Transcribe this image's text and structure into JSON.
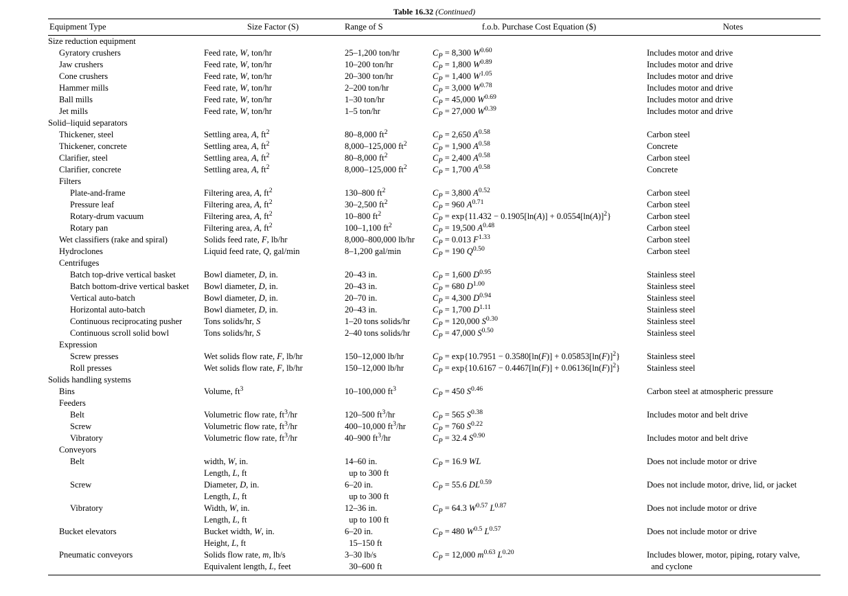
{
  "caption": {
    "label": "Table 16.32",
    "suffix": "(Continued)"
  },
  "headers": {
    "equipment": "Equipment Type",
    "size_factor": "Size Factor (S)",
    "range": "Range of S",
    "cost_eq": "f.o.b. Purchase Cost Equation ($)",
    "notes": "Notes"
  },
  "rows": [
    {
      "indent": 0,
      "eq": "Size reduction equipment"
    },
    {
      "indent": 1,
      "eq": "Gyratory crushers",
      "sf": "Feed rate, <span class='i'>W</span>, ton/hr",
      "rs": "25–1,200 ton/hr",
      "ce": "<span class='i'>C<sub>P</sub></span> = 8,300 <span class='i'>W</span><sup>0.60</sup>",
      "nt": "Includes motor and drive"
    },
    {
      "indent": 1,
      "eq": "Jaw crushers",
      "sf": "Feed rate, <span class='i'>W</span>, ton/hr",
      "rs": "10–200 ton/hr",
      "ce": "<span class='i'>C<sub>P</sub></span> = 1,800 <span class='i'>W</span><sup>0.89</sup>",
      "nt": "Includes motor and drive"
    },
    {
      "indent": 1,
      "eq": "Cone crushers",
      "sf": "Feed rate, <span class='i'>W</span>, ton/hr",
      "rs": "20–300 ton/hr",
      "ce": "<span class='i'>C<sub>P</sub></span> = 1,400 <span class='i'>W</span><sup>1.05</sup>",
      "nt": "Includes motor and drive"
    },
    {
      "indent": 1,
      "eq": "Hammer mills",
      "sf": "Feed rate, <span class='i'>W</span>, ton/hr",
      "rs": "2–200 ton/hr",
      "ce": "<span class='i'>C<sub>P</sub></span> = 3,000 <span class='i'>W</span><sup>0.78</sup>",
      "nt": "Includes motor and drive"
    },
    {
      "indent": 1,
      "eq": "Ball mills",
      "sf": "Feed rate, <span class='i'>W</span>, ton/hr",
      "rs": "1–30 ton/hr",
      "ce": "<span class='i'>C<sub>P</sub></span> = 45,000 <span class='i'>W</span><sup>0.69</sup>",
      "nt": "Includes motor and drive"
    },
    {
      "indent": 1,
      "eq": "Jet mills",
      "sf": "Feed rate, <span class='i'>W</span>, ton/hr",
      "rs": "1–5 ton/hr",
      "ce": "<span class='i'>C<sub>P</sub></span> = 27,000 <span class='i'>W</span><sup>0.39</sup>",
      "nt": "Includes motor and drive"
    },
    {
      "indent": 0,
      "eq": "Solid–liquid separators"
    },
    {
      "indent": 1,
      "eq": "Thickener, steel",
      "sf": "Settling area, <span class='i'>A</span>, ft<sup>2</sup>",
      "rs": "80–8,000 ft<sup>2</sup>",
      "ce": "<span class='i'>C<sub>P</sub></span> = 2,650 <span class='i'>A</span><sup>0.58</sup>",
      "nt": "Carbon steel"
    },
    {
      "indent": 1,
      "eq": "Thickener, concrete",
      "sf": "Settling area, <span class='i'>A</span>, ft<sup>2</sup>",
      "rs": "8,000–125,000 ft<sup>2</sup>",
      "ce": "<span class='i'>C<sub>P</sub></span> = 1,900 <span class='i'>A</span><sup>0.58</sup>",
      "nt": "Concrete"
    },
    {
      "indent": 1,
      "eq": "Clarifier, steel",
      "sf": "Settling area, <span class='i'>A</span>, ft<sup>2</sup>",
      "rs": "80–8,000 ft<sup>2</sup>",
      "ce": "<span class='i'>C<sub>P</sub></span> = 2,400 <span class='i'>A</span><sup>0.58</sup>",
      "nt": "Carbon steel"
    },
    {
      "indent": 1,
      "eq": "Clarifier, concrete",
      "sf": "Settling area, <span class='i'>A</span>, ft<sup>2</sup>",
      "rs": "8,000–125,000 ft<sup>2</sup>",
      "ce": "<span class='i'>C<sub>P</sub></span> = 1,700 <span class='i'>A</span><sup>0.58</sup>",
      "nt": "Concrete"
    },
    {
      "indent": 1,
      "eq": "Filters"
    },
    {
      "indent": 2,
      "eq": "Plate-and-frame",
      "sf": "Filtering area, <span class='i'>A</span>, ft<sup>2</sup>",
      "rs": "130–800 ft<sup>2</sup>",
      "ce": "<span class='i'>C<sub>P</sub></span> = 3,800 <span class='i'>A</span><sup>0.52</sup>",
      "nt": "Carbon steel"
    },
    {
      "indent": 2,
      "eq": "Pressure leaf",
      "sf": "Filtering area, <span class='i'>A</span>, ft<sup>2</sup>",
      "rs": "30–2,500 ft<sup>2</sup>",
      "ce": "<span class='i'>C<sub>P</sub></span> = 960 <span class='i'>A</span><sup>0.71</sup>",
      "nt": "Carbon steel"
    },
    {
      "indent": 2,
      "eq": "Rotary-drum vacuum",
      "sf": "Filtering area, <span class='i'>A</span>, ft<sup>2</sup>",
      "rs": "10–800 ft<sup>2</sup>",
      "ce": "<span class='i'>C<sub>P</sub></span> = exp{11.432 − 0.1905[ln(<span class='i'>A</span>)] + 0.0554[ln(<span class='i'>A</span>)]<sup>2</sup>}",
      "nt": "Carbon steel"
    },
    {
      "indent": 2,
      "eq": "Rotary pan",
      "sf": "Filtering area, <span class='i'>A</span>, ft<sup>2</sup>",
      "rs": "100–1,100 ft<sup>2</sup>",
      "ce": "<span class='i'>C<sub>P</sub></span> = 19,500 <span class='i'>A</span><sup>0.48</sup>",
      "nt": "Carbon steel"
    },
    {
      "indent": 1,
      "eq": "Wet classifiers (rake and spiral)",
      "sf": "Solids feed rate, <span class='i'>F</span>, lb/hr",
      "rs": "8,000–800,000 lb/hr",
      "ce": "<span class='i'>C<sub>P</sub></span> = 0.013 <span class='i'>F</span><sup>1.33</sup>",
      "nt": "Carbon steel"
    },
    {
      "indent": 1,
      "eq": "Hydroclones",
      "sf": "Liquid feed rate, <span class='i'>Q</span>, gal/min",
      "rs": "8–1,200 gal/min",
      "ce": "<span class='i'>C<sub>P</sub></span> = 190 <span class='i'>Q</span><sup>0.50</sup>",
      "nt": "Carbon steel"
    },
    {
      "indent": 1,
      "eq": "Centrifuges"
    },
    {
      "indent": 2,
      "eq": "Batch top-drive vertical basket",
      "sf": "Bowl diameter, <span class='i'>D</span>, in.",
      "rs": "20–43 in.",
      "ce": "<span class='i'>C<sub>P</sub></span> = 1,600 <span class='i'>D</span><sup>0.95</sup>",
      "nt": "Stainless steel"
    },
    {
      "indent": 2,
      "eq": "Batch bottom-drive vertical basket",
      "sf": "Bowl diameter, <span class='i'>D</span>, in.",
      "rs": "20–43 in.",
      "ce": "<span class='i'>C<sub>P</sub></span> = 680 <span class='i'>D</span><sup>1.00</sup>",
      "nt": "Stainless steel"
    },
    {
      "indent": 2,
      "eq": "Vertical auto-batch",
      "sf": "Bowl diameter, <span class='i'>D</span>, in.",
      "rs": "20–70 in.",
      "ce": "<span class='i'>C<sub>P</sub></span> = 4,300 <span class='i'>D</span><sup>0.94</sup>",
      "nt": "Stainless steel"
    },
    {
      "indent": 2,
      "eq": "Horizontal auto-batch",
      "sf": "Bowl diameter, <span class='i'>D</span>, in.",
      "rs": "20–43 in.",
      "ce": "<span class='i'>C<sub>P</sub></span> = 1,700 <span class='i'>D</span><sup>1.11</sup>",
      "nt": "Stainless steel"
    },
    {
      "indent": 2,
      "eq": "Continuous reciprocating pusher",
      "sf": "Tons solids/hr, <span class='i'>S</span>",
      "rs": "1–20 tons solids/hr",
      "ce": "<span class='i'>C<sub>P</sub></span> = 120,000 <span class='i'>S</span><sup>0.30</sup>",
      "nt": "Stainless steel"
    },
    {
      "indent": 2,
      "eq": "Continuous scroll solid bowl",
      "sf": "Tons solids/hr, <span class='i'>S</span>",
      "rs": "2–40 tons solids/hr",
      "ce": "<span class='i'>C<sub>P</sub></span> = 47,000 <span class='i'>S</span><sup>0.50</sup>",
      "nt": "Stainless steel"
    },
    {
      "indent": 1,
      "eq": "Expression"
    },
    {
      "indent": 2,
      "eq": "Screw presses",
      "sf": "Wet solids flow rate, <span class='i'>F</span>, lb/hr",
      "rs": "150–12,000 lb/hr",
      "ce": "<span class='i'>C<sub>P</sub></span> = exp{10.7951 − 0.3580[ln(<span class='i'>F</span>)] + 0.05853[ln(<span class='i'>F</span>)]<sup>2</sup>}",
      "nt": "Stainless steel"
    },
    {
      "indent": 2,
      "eq": "Roll presses",
      "sf": "Wet solids flow rate, <span class='i'>F</span>, lb/hr",
      "rs": "150–12,000 lb/hr",
      "ce": "<span class='i'>C<sub>P</sub></span> = exp{10.6167 − 0.4467[ln(<span class='i'>F</span>)] + 0.06136[ln(<span class='i'>F</span>)]<sup>2</sup>}",
      "nt": "Stainless steel"
    },
    {
      "indent": 0,
      "eq": "Solids handling systems"
    },
    {
      "indent": 1,
      "eq": "Bins",
      "sf": "Volume, ft<sup>3</sup>",
      "rs": "10–100,000 ft<sup>3</sup>",
      "ce": "<span class='i'>C<sub>P</sub></span> = 450 <span class='i'>S</span><sup>0.46</sup>",
      "nt": "Carbon steel at atmospheric pressure"
    },
    {
      "indent": 1,
      "eq": "Feeders"
    },
    {
      "indent": 2,
      "eq": "Belt",
      "sf": "Volumetric flow rate, ft<sup>3</sup>/hr",
      "rs": "120–500 ft<sup>3</sup>/hr",
      "ce": "<span class='i'>C<sub>P</sub></span> = 565 <span class='i'>S</span><sup>0.38</sup>",
      "nt": "Includes motor and belt drive"
    },
    {
      "indent": 2,
      "eq": "Screw",
      "sf": "Volumetric flow rate, ft<sup>3</sup>/hr",
      "rs": "400–10,000 ft<sup>3</sup>/hr",
      "ce": "<span class='i'>C<sub>P</sub></span> = 760 <span class='i'>S</span><sup>0.22</sup>",
      "nt": ""
    },
    {
      "indent": 2,
      "eq": "Vibratory",
      "sf": "Volumetric flow rate, ft<sup>3</sup>/hr",
      "rs": "40–900 ft<sup>3</sup>/hr",
      "ce": "<span class='i'>C<sub>P</sub></span> = 32.4 <span class='i'>S</span><sup>0.90</sup>",
      "nt": "Includes motor and belt drive"
    },
    {
      "indent": 1,
      "eq": "Conveyors"
    },
    {
      "indent": 2,
      "eq": "Belt",
      "sf": "width, <span class='i'>W</span>, in.",
      "rs": "14–60 in.",
      "ce": "<span class='i'>C<sub>P</sub></span> = 16.9 <span class='i'>WL</span>",
      "nt": "Does not include motor or drive"
    },
    {
      "indent": 2,
      "eq": "",
      "sf": "Length, <span class='i'>L</span>, ft",
      "rs": "&nbsp;&nbsp;up to 300 ft"
    },
    {
      "indent": 2,
      "eq": "Screw",
      "sf": "Diameter, <span class='i'>D</span>, in.",
      "rs": "6–20 in.",
      "ce": "<span class='i'>C<sub>P</sub></span> = 55.6 <span class='i'>DL</span><sup>0.59</sup>",
      "nt": "Does not include motor, drive, lid, or jacket"
    },
    {
      "indent": 2,
      "eq": "",
      "sf": "Length, <span class='i'>L</span>, ft",
      "rs": "&nbsp;&nbsp;up to 300 ft"
    },
    {
      "indent": 2,
      "eq": "Vibratory",
      "sf": "Width, <span class='i'>W</span>, in.",
      "rs": "12–36 in.",
      "ce": "<span class='i'>C<sub>P</sub></span> = 64.3 <span class='i'>W</span><sup>0.57</sup> <span class='i'>L</span><sup>0.87</sup>",
      "nt": "Does not include motor or drive"
    },
    {
      "indent": 2,
      "eq": "",
      "sf": "Length, <span class='i'>L</span>, ft",
      "rs": "&nbsp;&nbsp;up to 100 ft"
    },
    {
      "indent": 1,
      "eq": "Bucket elevators",
      "sf": "Bucket width, <span class='i'>W</span>, in.",
      "rs": "6–20 in.",
      "ce": "<span class='i'>C<sub>P</sub></span> = 480 <span class='i'>W</span><sup>0.5</sup> <span class='i'>L</span><sup>0.57</sup>",
      "nt": "Does not include motor or drive"
    },
    {
      "indent": 1,
      "eq": "",
      "sf": "Height, <span class='i'>L</span>, ft",
      "rs": "&nbsp;&nbsp;15–150 ft"
    },
    {
      "indent": 1,
      "eq": "Pneumatic conveyors",
      "sf": "Solids flow rate, <span class='i'>m</span>, lb/s",
      "rs": "3–30 lb/s",
      "ce": "<span class='i'>C<sub>P</sub></span> = 12,000 <span class='i'>m</span><sup>0.63</sup> <span class='i'>L</span><sup>0.20</sup>",
      "nt": "Includes blower, motor, piping, rotary valve,"
    },
    {
      "indent": 1,
      "eq": "",
      "sf": "Equivalent length, <span class='i'>L</span>, feet",
      "rs": "&nbsp;&nbsp;30–600 ft",
      "nt": "&nbsp;&nbsp;and cyclone"
    }
  ]
}
